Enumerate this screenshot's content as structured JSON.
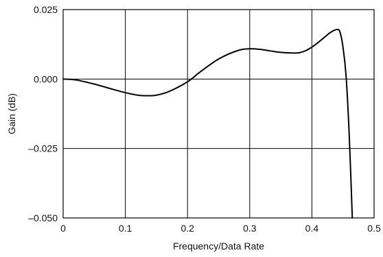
{
  "chart_data": {
    "type": "line",
    "title": "",
    "xlabel": "Frequency/Data Rate",
    "ylabel": "Gain (dB)",
    "xlim": [
      0,
      0.5
    ],
    "ylim": [
      -0.05,
      0.025
    ],
    "xticks": [
      0,
      0.1,
      0.2,
      0.3,
      0.4,
      0.5
    ],
    "xtick_labels": [
      "0",
      "0.1",
      "0.2",
      "0.3",
      "0.4",
      "0.5"
    ],
    "yticks": [
      -0.05,
      -0.025,
      0,
      0.025
    ],
    "ytick_labels": [
      "–0.050",
      "–0.025",
      "0.000",
      "0.025"
    ],
    "grid": true,
    "line_color": "#000000",
    "series": [
      {
        "name": "",
        "x": [
          0,
          0.02,
          0.05,
          0.08,
          0.1,
          0.12,
          0.135,
          0.15,
          0.17,
          0.2,
          0.22,
          0.25,
          0.28,
          0.3,
          0.32,
          0.35,
          0.38,
          0.4,
          0.42,
          0.43,
          0.44,
          0.445,
          0.45,
          0.455,
          0.46,
          0.465
        ],
        "y": [
          0,
          -0.0003,
          -0.0018,
          -0.0037,
          -0.0049,
          -0.0058,
          -0.006,
          -0.0058,
          -0.0045,
          -0.001,
          0.0025,
          0.0072,
          0.0102,
          0.0109,
          0.0106,
          0.0096,
          0.0095,
          0.0115,
          0.015,
          0.0168,
          0.0178,
          0.017,
          0.0115,
          0.001,
          -0.02,
          -0.05
        ]
      }
    ]
  }
}
